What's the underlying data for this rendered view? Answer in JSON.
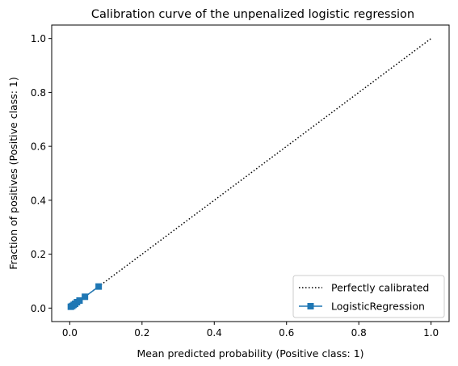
{
  "chart_data": {
    "type": "line",
    "title": "Calibration curve of the unpenalized logistic regression",
    "xlabel": "Mean predicted probability (Positive class: 1)",
    "ylabel": "Fraction of positives (Positive class: 1)",
    "xlim": [
      -0.05,
      1.05
    ],
    "ylim": [
      -0.05,
      1.05
    ],
    "xticks": [
      0.0,
      0.2,
      0.4,
      0.6,
      0.8,
      1.0
    ],
    "yticks": [
      0.0,
      0.2,
      0.4,
      0.6,
      0.8,
      1.0
    ],
    "xtick_labels": [
      "0.0",
      "0.2",
      "0.4",
      "0.6",
      "0.8",
      "1.0"
    ],
    "ytick_labels": [
      "0.0",
      "0.2",
      "0.4",
      "0.6",
      "0.8",
      "1.0"
    ],
    "grid": false,
    "legend_position": "lower-right",
    "series": [
      {
        "name": "Perfectly calibrated",
        "style": "dotted",
        "color": "#000000",
        "marker": "none",
        "x": [
          0,
          1
        ],
        "y": [
          0,
          1
        ]
      },
      {
        "name": "LogisticRegression",
        "style": "solid",
        "color": "#1f77b4",
        "marker": "square",
        "x": [
          0.003,
          0.007,
          0.011,
          0.015,
          0.02,
          0.027,
          0.042,
          0.08
        ],
        "y": [
          0.005,
          0.008,
          0.012,
          0.016,
          0.022,
          0.028,
          0.042,
          0.08
        ]
      }
    ]
  }
}
